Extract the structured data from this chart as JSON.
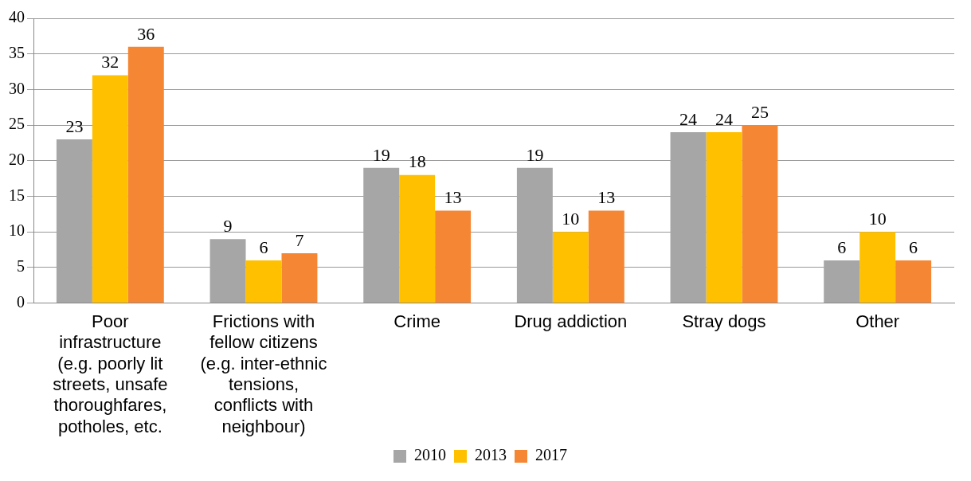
{
  "chart_data": {
    "type": "bar",
    "categories": [
      "Poor infrastructure (e.g. poorly lit streets, unsafe thoroughfares, potholes, etc.",
      "Frictions with fellow citizens (e.g. inter-ethnic tensions, conflicts with neighbour)",
      "Crime",
      "Drug addiction",
      "Stray dogs",
      "Other"
    ],
    "series": [
      {
        "name": "2010",
        "color": "#a6a6a6",
        "values": [
          23,
          9,
          19,
          19,
          24,
          6
        ]
      },
      {
        "name": "2013",
        "color": "#ffc000",
        "values": [
          32,
          6,
          18,
          10,
          24,
          10
        ]
      },
      {
        "name": "2017",
        "color": "#f58634",
        "values": [
          36,
          7,
          13,
          13,
          25,
          6
        ]
      }
    ],
    "ylim": [
      0,
      40
    ],
    "yticks": [
      0,
      5,
      10,
      15,
      20,
      25,
      30,
      35,
      40
    ],
    "grid": "y",
    "legend": "bottom",
    "data_labels": true
  }
}
